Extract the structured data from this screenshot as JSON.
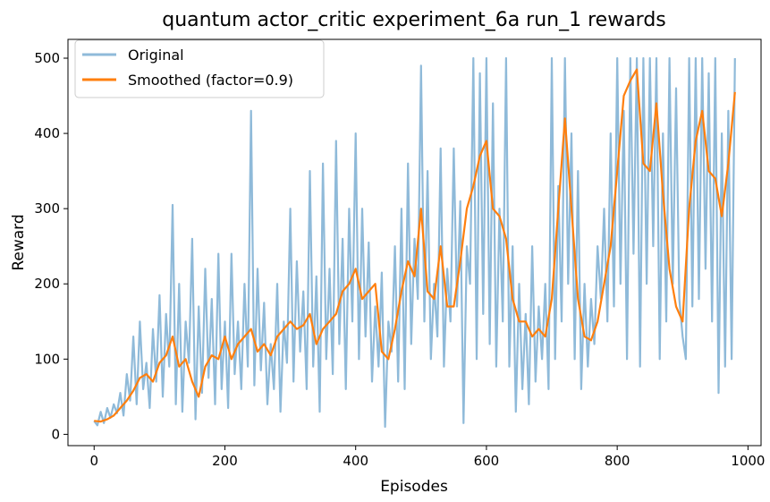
{
  "chart_data": {
    "type": "line",
    "title": "quantum actor_critic experiment_6a run_1 rewards",
    "xlabel": "Episodes",
    "ylabel": "Reward",
    "xlim": [
      -40,
      1020
    ],
    "ylim": [
      -15,
      525
    ],
    "xticks": [
      0,
      200,
      400,
      600,
      800,
      1000
    ],
    "yticks": [
      0,
      100,
      200,
      300,
      400,
      500
    ],
    "grid": false,
    "legend": {
      "placement": "top-left",
      "entries": [
        "Original",
        "Smoothed (factor=0.9)"
      ]
    },
    "series": [
      {
        "name": "Original",
        "color": "#8fbad9",
        "x": [
          0,
          5,
          10,
          15,
          20,
          25,
          30,
          35,
          40,
          45,
          50,
          55,
          60,
          65,
          70,
          75,
          80,
          85,
          90,
          95,
          100,
          105,
          110,
          115,
          120,
          125,
          130,
          135,
          140,
          145,
          150,
          155,
          160,
          165,
          170,
          175,
          180,
          185,
          190,
          195,
          200,
          205,
          210,
          215,
          220,
          225,
          230,
          235,
          240,
          245,
          250,
          255,
          260,
          265,
          270,
          275,
          280,
          285,
          290,
          295,
          300,
          305,
          310,
          315,
          320,
          325,
          330,
          335,
          340,
          345,
          350,
          355,
          360,
          365,
          370,
          375,
          380,
          385,
          390,
          395,
          400,
          405,
          410,
          415,
          420,
          425,
          430,
          435,
          440,
          445,
          450,
          455,
          460,
          465,
          470,
          475,
          480,
          485,
          490,
          495,
          500,
          505,
          510,
          515,
          520,
          525,
          530,
          535,
          540,
          545,
          550,
          555,
          560,
          565,
          570,
          575,
          580,
          585,
          590,
          595,
          600,
          605,
          610,
          615,
          620,
          625,
          630,
          635,
          640,
          645,
          650,
          655,
          660,
          665,
          670,
          675,
          680,
          685,
          690,
          695,
          700,
          705,
          710,
          715,
          720,
          725,
          730,
          735,
          740,
          745,
          750,
          755,
          760,
          765,
          770,
          775,
          780,
          785,
          790,
          795,
          800,
          805,
          810,
          815,
          820,
          825,
          830,
          835,
          840,
          845,
          850,
          855,
          860,
          865,
          870,
          875,
          880,
          885,
          890,
          895,
          900,
          905,
          910,
          915,
          920,
          925,
          930,
          935,
          940,
          945,
          950,
          955,
          960,
          965,
          970,
          975,
          980
        ],
        "y": [
          18,
          12,
          30,
          15,
          35,
          22,
          40,
          28,
          55,
          25,
          80,
          45,
          130,
          40,
          150,
          60,
          95,
          35,
          140,
          70,
          185,
          50,
          160,
          90,
          305,
          40,
          200,
          30,
          150,
          95,
          260,
          20,
          170,
          55,
          220,
          75,
          180,
          40,
          240,
          60,
          150,
          35,
          240,
          80,
          150,
          60,
          200,
          90,
          430,
          65,
          220,
          85,
          175,
          40,
          120,
          60,
          200,
          30,
          150,
          95,
          300,
          70,
          230,
          110,
          190,
          60,
          350,
          90,
          210,
          30,
          360,
          100,
          220,
          80,
          390,
          120,
          260,
          60,
          300,
          150,
          400,
          100,
          300,
          130,
          255,
          70,
          170,
          90,
          215,
          10,
          150,
          110,
          250,
          70,
          300,
          60,
          360,
          120,
          260,
          180,
          490,
          150,
          350,
          100,
          200,
          130,
          380,
          90,
          220,
          150,
          380,
          170,
          310,
          15,
          250,
          200,
          500,
          100,
          480,
          160,
          500,
          120,
          440,
          90,
          300,
          150,
          500,
          90,
          250,
          30,
          200,
          60,
          160,
          40,
          250,
          70,
          170,
          100,
          200,
          60,
          500,
          100,
          330,
          150,
          500,
          200,
          400,
          100,
          350,
          60,
          200,
          90,
          180,
          120,
          250,
          180,
          300,
          150,
          400,
          170,
          500,
          200,
          430,
          100,
          500,
          240,
          500,
          90,
          500,
          200,
          500,
          250,
          500,
          100,
          400,
          150,
          500,
          200,
          460,
          180,
          130,
          100,
          500,
          170,
          500,
          180,
          500,
          220,
          480,
          150,
          500,
          55,
          400,
          90,
          430,
          100,
          500
        ]
      },
      {
        "name": "Smoothed (factor=0.9)",
        "color": "#ff7f0e",
        "x": [
          0,
          10,
          20,
          30,
          40,
          50,
          60,
          70,
          80,
          90,
          100,
          110,
          120,
          130,
          140,
          150,
          160,
          170,
          180,
          190,
          200,
          210,
          220,
          230,
          240,
          250,
          260,
          270,
          280,
          290,
          300,
          310,
          320,
          330,
          340,
          350,
          360,
          370,
          380,
          390,
          400,
          410,
          420,
          430,
          440,
          450,
          460,
          470,
          480,
          490,
          500,
          510,
          520,
          530,
          540,
          550,
          560,
          570,
          580,
          590,
          600,
          610,
          620,
          630,
          640,
          650,
          660,
          670,
          680,
          690,
          700,
          710,
          720,
          730,
          740,
          750,
          760,
          770,
          780,
          790,
          800,
          810,
          820,
          830,
          840,
          850,
          860,
          870,
          880,
          890,
          900,
          910,
          920,
          930,
          940,
          950,
          960,
          970,
          980
        ],
        "y": [
          18,
          17,
          20,
          25,
          35,
          45,
          58,
          75,
          80,
          70,
          95,
          105,
          130,
          90,
          100,
          70,
          50,
          90,
          105,
          100,
          130,
          100,
          120,
          130,
          140,
          110,
          120,
          105,
          130,
          140,
          150,
          140,
          145,
          160,
          120,
          140,
          150,
          160,
          190,
          200,
          220,
          180,
          190,
          200,
          110,
          100,
          140,
          190,
          230,
          210,
          300,
          190,
          180,
          250,
          170,
          170,
          230,
          300,
          330,
          370,
          390,
          300,
          290,
          260,
          180,
          150,
          150,
          130,
          140,
          130,
          180,
          300,
          420,
          300,
          180,
          130,
          125,
          150,
          200,
          250,
          350,
          450,
          470,
          485,
          360,
          350,
          440,
          320,
          220,
          170,
          150,
          300,
          390,
          430,
          350,
          340,
          290,
          360,
          455
        ]
      }
    ]
  }
}
